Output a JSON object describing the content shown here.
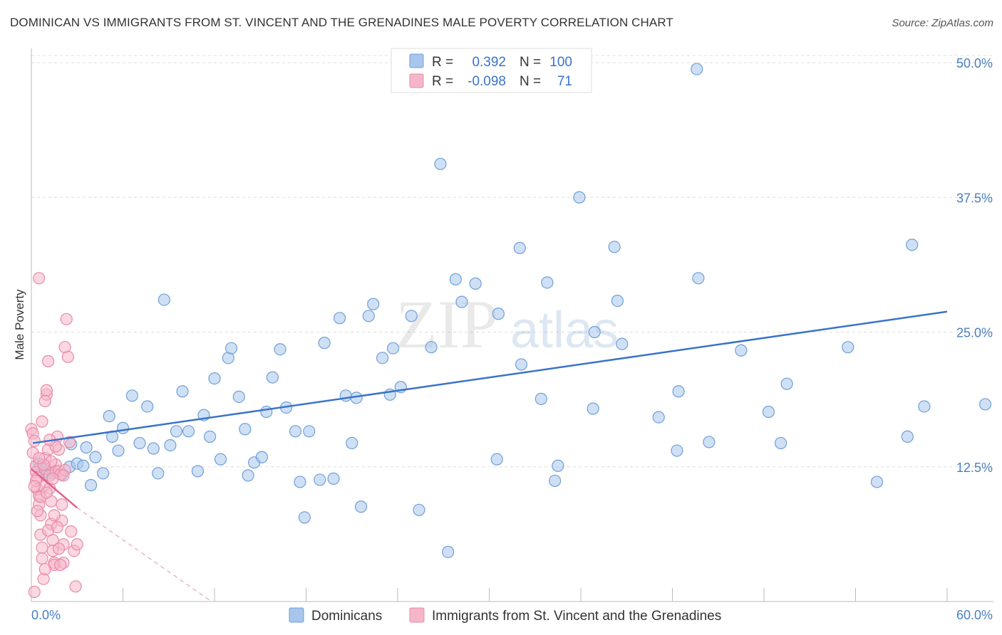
{
  "header": {
    "title": "DOMINICAN VS IMMIGRANTS FROM ST. VINCENT AND THE GRENADINES MALE POVERTY CORRELATION CHART",
    "source": "Source: ZipAtlas.com"
  },
  "watermark": {
    "zip": "ZIP",
    "atlas": "atlas"
  },
  "colors": {
    "blue_fill": "#a8c6ec",
    "blue_stroke": "#6f9fd8",
    "blue_line": "#3a73c9",
    "pink_fill": "#f6b6c9",
    "pink_stroke": "#e98aa8",
    "pink_line": "#e0608e",
    "axis_text": "#4a7fc1",
    "grid": "#dddddd"
  },
  "stats": {
    "row1": {
      "r_label": "R =",
      "r_value": "0.392",
      "n_label": "N =",
      "n_value": "100"
    },
    "row2": {
      "r_label": "R =",
      "r_value": "-0.098",
      "n_label": "N =",
      "n_value": "71"
    }
  },
  "chart_data": {
    "type": "scatter",
    "title": "DOMINICAN VS IMMIGRANTS FROM ST. VINCENT AND THE GRENADINES MALE POVERTY CORRELATION CHART",
    "xlabel": "",
    "ylabel": "Male Poverty",
    "xlim": [
      0,
      60
    ],
    "ylim": [
      0,
      50
    ],
    "x_tick_labels": {
      "left": "0.0%",
      "right": "60.0%"
    },
    "y_ticks": [
      {
        "value": 12.5,
        "label": "12.5%"
      },
      {
        "value": 25.0,
        "label": "25.0%"
      },
      {
        "value": 37.5,
        "label": "37.5%"
      },
      {
        "value": 50.0,
        "label": "50.0%"
      }
    ],
    "legend": [
      "Dominicans",
      "Immigrants from St. Vincent and the Grenadines"
    ],
    "series": [
      {
        "name": "Dominicans",
        "color": "#a8c6ec",
        "r": 0.392,
        "n": 100,
        "trend": {
          "x0": 0.1,
          "y0": 14.7,
          "x1": 60,
          "y1": 26.9
        },
        "points": [
          [
            0.5,
            12.8
          ],
          [
            0.6,
            12.5
          ],
          [
            0.8,
            12.0
          ],
          [
            1.0,
            11.8
          ],
          [
            1.4,
            11.9
          ],
          [
            2.0,
            11.8
          ],
          [
            2.5,
            12.5
          ],
          [
            2.6,
            14.6
          ],
          [
            3.0,
            12.8
          ],
          [
            3.4,
            12.6
          ],
          [
            3.6,
            14.3
          ],
          [
            3.9,
            10.8
          ],
          [
            4.2,
            13.4
          ],
          [
            4.7,
            11.9
          ],
          [
            5.1,
            17.2
          ],
          [
            5.3,
            15.3
          ],
          [
            5.7,
            14.0
          ],
          [
            6.0,
            16.1
          ],
          [
            6.6,
            19.1
          ],
          [
            7.1,
            14.7
          ],
          [
            7.6,
            18.1
          ],
          [
            8.0,
            14.2
          ],
          [
            8.3,
            11.9
          ],
          [
            8.7,
            28.0
          ],
          [
            9.1,
            14.5
          ],
          [
            9.5,
            15.8
          ],
          [
            9.9,
            19.5
          ],
          [
            10.3,
            15.8
          ],
          [
            10.9,
            12.1
          ],
          [
            11.3,
            17.3
          ],
          [
            11.7,
            15.3
          ],
          [
            12.0,
            20.7
          ],
          [
            12.4,
            13.2
          ],
          [
            12.9,
            22.6
          ],
          [
            13.1,
            23.5
          ],
          [
            13.6,
            19.0
          ],
          [
            14.0,
            16.0
          ],
          [
            14.2,
            11.7
          ],
          [
            14.6,
            12.9
          ],
          [
            15.1,
            13.4
          ],
          [
            15.4,
            17.6
          ],
          [
            15.8,
            20.8
          ],
          [
            16.3,
            23.4
          ],
          [
            16.7,
            18.0
          ],
          [
            17.3,
            15.8
          ],
          [
            17.6,
            11.1
          ],
          [
            17.9,
            7.8
          ],
          [
            18.2,
            15.8
          ],
          [
            18.9,
            11.3
          ],
          [
            19.2,
            24.0
          ],
          [
            19.8,
            11.4
          ],
          [
            20.2,
            26.3
          ],
          [
            20.6,
            19.1
          ],
          [
            21.0,
            14.7
          ],
          [
            21.3,
            18.9
          ],
          [
            21.6,
            8.8
          ],
          [
            22.1,
            26.5
          ],
          [
            22.4,
            27.6
          ],
          [
            23.0,
            22.6
          ],
          [
            23.5,
            19.2
          ],
          [
            23.7,
            23.5
          ],
          [
            24.2,
            19.9
          ],
          [
            24.9,
            26.5
          ],
          [
            25.4,
            8.5
          ],
          [
            26.2,
            23.6
          ],
          [
            26.8,
            40.6
          ],
          [
            27.3,
            4.6
          ],
          [
            27.8,
            29.9
          ],
          [
            28.2,
            27.8
          ],
          [
            29.1,
            29.5
          ],
          [
            30.5,
            13.2
          ],
          [
            30.6,
            26.7
          ],
          [
            32.0,
            32.8
          ],
          [
            32.1,
            22.0
          ],
          [
            33.4,
            18.8
          ],
          [
            33.8,
            29.6
          ],
          [
            34.3,
            11.2
          ],
          [
            34.5,
            12.6
          ],
          [
            35.9,
            37.5
          ],
          [
            36.8,
            17.9
          ],
          [
            36.9,
            25.0
          ],
          [
            38.2,
            32.9
          ],
          [
            38.4,
            27.9
          ],
          [
            38.7,
            23.9
          ],
          [
            41.1,
            17.1
          ],
          [
            42.3,
            14.0
          ],
          [
            42.4,
            19.5
          ],
          [
            43.6,
            49.4
          ],
          [
            43.7,
            30.0
          ],
          [
            44.4,
            14.8
          ],
          [
            46.5,
            23.3
          ],
          [
            48.3,
            17.6
          ],
          [
            49.1,
            14.7
          ],
          [
            49.5,
            20.2
          ],
          [
            53.5,
            23.6
          ],
          [
            55.4,
            11.1
          ],
          [
            57.4,
            15.3
          ],
          [
            57.7,
            33.1
          ],
          [
            58.5,
            18.1
          ],
          [
            62.5,
            18.3
          ]
        ]
      },
      {
        "name": "Immigrants from St. Vincent and the Grenadines",
        "color": "#f6b6c9",
        "r": -0.098,
        "n": 71,
        "trend": {
          "x0": 0.0,
          "y0": 12.3,
          "x1": 3.0,
          "y1": 8.7
        },
        "trend_dashed": {
          "x0": 3.0,
          "y0": 8.7,
          "x1": 11.8,
          "y1": 0.0
        },
        "points": [
          [
            0.0,
            16.0
          ],
          [
            0.1,
            15.6
          ],
          [
            0.2,
            14.9
          ],
          [
            0.3,
            12.6
          ],
          [
            0.3,
            12.0
          ],
          [
            0.4,
            11.5
          ],
          [
            0.4,
            10.4
          ],
          [
            0.5,
            9.8
          ],
          [
            0.5,
            9.0
          ],
          [
            0.6,
            8.0
          ],
          [
            0.6,
            6.2
          ],
          [
            0.7,
            5.0
          ],
          [
            0.7,
            4.0
          ],
          [
            0.8,
            2.1
          ],
          [
            0.8,
            10.7
          ],
          [
            0.9,
            12.3
          ],
          [
            0.9,
            13.3
          ],
          [
            1.0,
            19.2
          ],
          [
            1.0,
            19.6
          ],
          [
            1.1,
            22.3
          ],
          [
            1.1,
            14.1
          ],
          [
            1.2,
            11.7
          ],
          [
            1.2,
            10.5
          ],
          [
            1.3,
            9.3
          ],
          [
            1.3,
            7.2
          ],
          [
            1.4,
            5.7
          ],
          [
            1.4,
            4.7
          ],
          [
            1.5,
            3.6
          ],
          [
            1.5,
            3.4
          ],
          [
            1.6,
            12.7
          ],
          [
            1.6,
            12.1
          ],
          [
            1.7,
            15.3
          ],
          [
            1.8,
            14.1
          ],
          [
            1.8,
            12.1
          ],
          [
            1.9,
            11.8
          ],
          [
            2.0,
            9.0
          ],
          [
            2.0,
            7.5
          ],
          [
            2.1,
            5.3
          ],
          [
            2.1,
            3.6
          ],
          [
            2.2,
            23.6
          ],
          [
            2.3,
            26.2
          ],
          [
            2.4,
            22.7
          ],
          [
            2.5,
            14.8
          ],
          [
            2.6,
            6.5
          ],
          [
            2.8,
            4.7
          ],
          [
            2.9,
            1.4
          ],
          [
            3.0,
            5.3
          ],
          [
            0.2,
            0.9
          ],
          [
            0.5,
            30.0
          ],
          [
            0.7,
            16.7
          ],
          [
            0.9,
            18.6
          ],
          [
            1.3,
            13.0
          ],
          [
            1.5,
            8.0
          ],
          [
            1.6,
            14.4
          ],
          [
            2.2,
            12.2
          ],
          [
            0.3,
            11.2
          ],
          [
            0.6,
            9.7
          ],
          [
            1.1,
            6.6
          ],
          [
            1.8,
            4.9
          ],
          [
            2.1,
            11.7
          ],
          [
            0.4,
            8.4
          ],
          [
            0.8,
            12.7
          ],
          [
            1.2,
            15.0
          ],
          [
            1.9,
            3.4
          ],
          [
            0.1,
            13.8
          ],
          [
            0.5,
            13.3
          ],
          [
            1.4,
            11.4
          ],
          [
            1.0,
            10.1
          ],
          [
            0.2,
            10.7
          ],
          [
            1.7,
            6.9
          ],
          [
            0.9,
            3.0
          ]
        ]
      }
    ]
  }
}
